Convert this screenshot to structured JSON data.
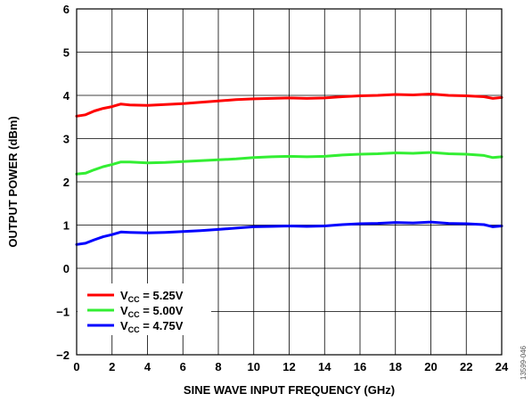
{
  "chart_data": {
    "type": "line",
    "xlabel": "SINE WAVE INPUT FREQUENCY (GHz)",
    "ylabel": "OUTPUT POWER (dBm)",
    "xlim": [
      0,
      24
    ],
    "ylim": [
      -2,
      6
    ],
    "xticks": [
      "0",
      "2",
      "4",
      "6",
      "8",
      "10",
      "12",
      "14",
      "16",
      "18",
      "20",
      "22",
      "24"
    ],
    "yticks": [
      "−2",
      "−1",
      "0",
      "1",
      "2",
      "3",
      "4",
      "5",
      "6"
    ],
    "grid": true,
    "legend_position": "bottom-left",
    "figure_id": "13599-046",
    "x": [
      0,
      0.5,
      1,
      1.5,
      2,
      2.5,
      3,
      4,
      5,
      6,
      7,
      8,
      9,
      10,
      11,
      12,
      13,
      14,
      15,
      16,
      17,
      18,
      19,
      20,
      21,
      22,
      23,
      23.5,
      24
    ],
    "series": [
      {
        "name": "V_CC = 5.25V",
        "legend_main": "V",
        "legend_sub": "CC",
        "legend_rest": " = 5.25V",
        "color": "#ff0000",
        "values": [
          3.52,
          3.55,
          3.64,
          3.7,
          3.74,
          3.8,
          3.78,
          3.77,
          3.79,
          3.81,
          3.84,
          3.87,
          3.9,
          3.92,
          3.93,
          3.94,
          3.93,
          3.94,
          3.97,
          3.99,
          4.0,
          4.02,
          4.01,
          4.03,
          4.0,
          3.99,
          3.97,
          3.93,
          3.95
        ]
      },
      {
        "name": "V_CC = 5.00V",
        "legend_main": "V",
        "legend_sub": "CC",
        "legend_rest": " = 5.00V",
        "color": "#33ee33",
        "values": [
          2.18,
          2.2,
          2.28,
          2.35,
          2.4,
          2.46,
          2.46,
          2.44,
          2.45,
          2.47,
          2.49,
          2.51,
          2.53,
          2.56,
          2.58,
          2.59,
          2.58,
          2.59,
          2.62,
          2.64,
          2.65,
          2.67,
          2.66,
          2.68,
          2.65,
          2.64,
          2.61,
          2.56,
          2.58
        ]
      },
      {
        "name": "V_CC = 4.75V",
        "legend_main": "V",
        "legend_sub": "CC",
        "legend_rest": " = 4.75V",
        "color": "#0000ff",
        "values": [
          0.55,
          0.58,
          0.66,
          0.73,
          0.78,
          0.84,
          0.83,
          0.82,
          0.83,
          0.85,
          0.87,
          0.9,
          0.93,
          0.96,
          0.97,
          0.98,
          0.97,
          0.98,
          1.01,
          1.03,
          1.04,
          1.06,
          1.05,
          1.07,
          1.04,
          1.03,
          1.01,
          0.96,
          0.98
        ]
      }
    ]
  }
}
